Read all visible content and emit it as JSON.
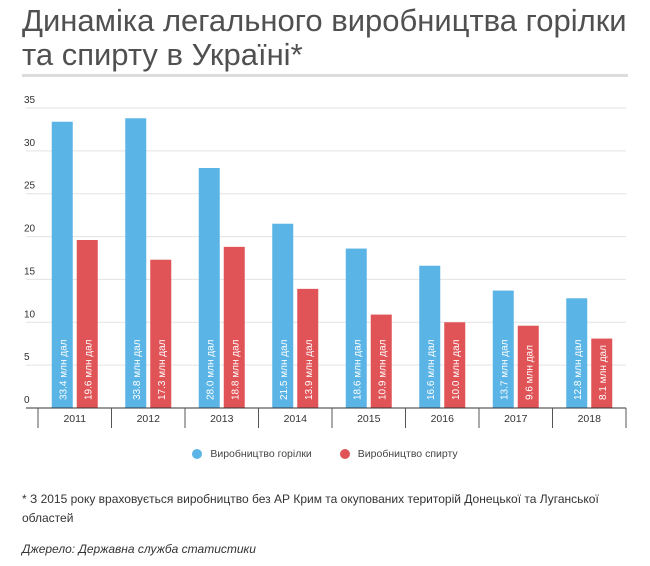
{
  "title": "Динаміка легального виробництва горілки та спирту в Україні*",
  "chart_data": {
    "type": "bar",
    "categories": [
      "2011",
      "2012",
      "2013",
      "2014",
      "2015",
      "2016",
      "2017",
      "2018"
    ],
    "series": [
      {
        "name": "Виробництво горілки",
        "color": "#5ab4e5",
        "values": [
          33.4,
          33.8,
          28.0,
          21.5,
          18.6,
          16.6,
          13.7,
          12.8
        ],
        "labels": [
          "33.4 млн дал",
          "33.8 млн дал",
          "28.0 млн дал",
          "21.5 млн дал",
          "18.6 млн дал",
          "16.6 млн дал",
          "13.7 млн дал",
          "12.8 млн дал"
        ]
      },
      {
        "name": "Виробництво спирту",
        "color": "#e05357",
        "values": [
          19.6,
          17.3,
          18.8,
          13.9,
          10.9,
          10.0,
          9.6,
          8.1
        ],
        "labels": [
          "19.6 млн дал",
          "17.3 млн дал",
          "18.8 млн дал",
          "13.9 млн дал",
          "10.9 млн дал",
          "10.0 млн дал",
          "9.6 млн дал",
          "8.1 млн дал"
        ]
      }
    ],
    "yticks": [
      0,
      5,
      10,
      15,
      20,
      25,
      30,
      35
    ],
    "ylim": [
      0,
      35
    ],
    "legend_position": "bottom"
  },
  "note": "* З 2015 року враховується виробництво без АР Крим та окупованих територій Донецької та Луганської областей",
  "source": "Джерело: Державна служба статистики"
}
